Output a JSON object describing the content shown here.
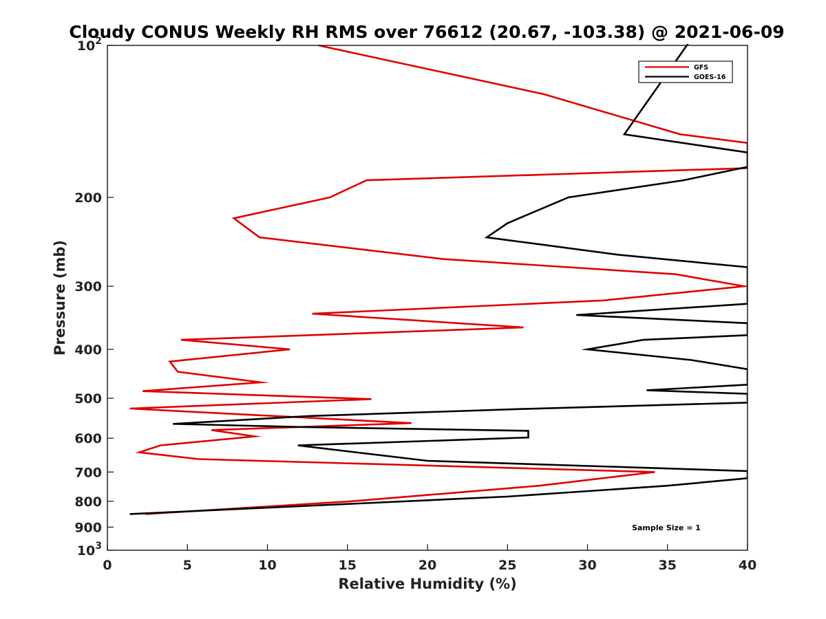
{
  "chart_data": {
    "type": "line",
    "title": "Cloudy CONUS Weekly RH RMS over 76612 (20.67, -103.38) @ 2021-06-09",
    "xlabel": "Relative Humidity (%)",
    "ylabel": "Pressure (mb)",
    "xlim": [
      0,
      40
    ],
    "ylim": [
      100,
      1000
    ],
    "yscale": "log",
    "y_reversed": true,
    "x_ticks": [
      0,
      5,
      10,
      15,
      20,
      25,
      30,
      35,
      40
    ],
    "x_tick_labels": [
      "0",
      "5",
      "10",
      "15",
      "20",
      "25",
      "30",
      "35",
      "40"
    ],
    "y_ticks": [
      {
        "value": 100,
        "base": "10",
        "exp": "2"
      },
      {
        "value": 200,
        "label": "200"
      },
      {
        "value": 300,
        "label": "300"
      },
      {
        "value": 400,
        "label": "400"
      },
      {
        "value": 500,
        "label": "500"
      },
      {
        "value": 600,
        "label": "600"
      },
      {
        "value": 700,
        "label": "700"
      },
      {
        "value": 800,
        "label": "800"
      },
      {
        "value": 900,
        "label": "900"
      },
      {
        "value": 1000,
        "base": "10",
        "exp": "3"
      }
    ],
    "legend_position": "top-right",
    "annotation": "Sample Size = 1",
    "series": [
      {
        "name": "GFS",
        "color": "#e00000",
        "points": [
          [
            13.2,
            100
          ],
          [
            27.3,
            125
          ],
          [
            35.8,
            150
          ],
          [
            40.0,
            156
          ],
          [
            40.0,
            175
          ],
          [
            16.2,
            185
          ],
          [
            13.9,
            200
          ],
          [
            7.9,
            220
          ],
          [
            9.5,
            240
          ],
          [
            21.0,
            265
          ],
          [
            35.5,
            284
          ],
          [
            39.8,
            300
          ],
          [
            31.0,
            320
          ],
          [
            12.8,
            340
          ],
          [
            26.0,
            362
          ],
          [
            4.6,
            383
          ],
          [
            11.4,
            400
          ],
          [
            3.9,
            423
          ],
          [
            4.4,
            443
          ],
          [
            9.6,
            465
          ],
          [
            2.2,
            484
          ],
          [
            16.5,
            502
          ],
          [
            1.4,
            524
          ],
          [
            19.0,
            560
          ],
          [
            6.5,
            578
          ],
          [
            9.2,
            595
          ],
          [
            3.3,
            620
          ],
          [
            2.0,
            640
          ],
          [
            5.7,
            660
          ],
          [
            34.2,
            700
          ],
          [
            27.0,
            745
          ],
          [
            15.2,
            800
          ],
          [
            2.4,
            848
          ]
        ]
      },
      {
        "name": "GOES-16",
        "color": "#000000",
        "points": [
          [
            36.5,
            97
          ],
          [
            32.3,
            150
          ],
          [
            40.0,
            163
          ],
          [
            40.0,
            174
          ],
          [
            36.0,
            185
          ],
          [
            28.8,
            200
          ],
          [
            25.0,
            225
          ],
          [
            23.7,
            240
          ],
          [
            32.0,
            260
          ],
          [
            40.0,
            275
          ],
          [
            40.0,
            325
          ],
          [
            29.3,
            342
          ],
          [
            40.0,
            355
          ],
          [
            40.0,
            375
          ],
          [
            33.5,
            383
          ],
          [
            30.0,
            400
          ],
          [
            36.5,
            420
          ],
          [
            40.0,
            438
          ],
          [
            40.0,
            470
          ],
          [
            33.7,
            482
          ],
          [
            40.0,
            490
          ],
          [
            40.0,
            510
          ],
          [
            26.0,
            525
          ],
          [
            12.7,
            542
          ],
          [
            4.1,
            562
          ],
          [
            12.0,
            570
          ],
          [
            26.3,
            580
          ],
          [
            26.3,
            598
          ],
          [
            11.9,
            620
          ],
          [
            20.0,
            665
          ],
          [
            40.0,
            697
          ],
          [
            40.0,
            720
          ],
          [
            35.0,
            745
          ],
          [
            25.0,
            783
          ],
          [
            1.4,
            848
          ]
        ]
      }
    ]
  }
}
